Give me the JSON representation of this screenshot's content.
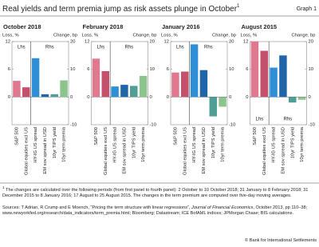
{
  "header": {
    "title": "Real yields and term premia jump as risk assets plunge in October",
    "title_note": "1",
    "graph_label": "Graph 1"
  },
  "chart_data": [
    {
      "type": "bar",
      "title": "October 2018",
      "y_label": "Loss, %",
      "y2_label": "Change, bp",
      "categories": [
        "S&P 500",
        "Global equities excl US",
        "HY-IG US spread",
        "EM sov spread in USD",
        "10yr TIPS yield",
        "10yr term premia"
      ],
      "colors": [
        "#e07890",
        "#c4506c",
        "#2e8fd6",
        "#1f65a8",
        "#4f9f96",
        "#8cc48e"
      ],
      "series": [
        {
          "name": "Lhs",
          "axis": "y",
          "values": [
            3.5,
            2.1,
            null,
            null,
            null,
            null
          ]
        },
        {
          "name": "Rhs",
          "axis": "y2",
          "values": [
            null,
            null,
            14,
            1,
            1,
            6
          ]
        }
      ],
      "series_label_position": "top",
      "ylim": [
        -6,
        12
      ],
      "yticks": [
        0,
        6,
        12
      ],
      "y2lim": [
        -10,
        20
      ],
      "y2ticks": [
        -10,
        0,
        10,
        20
      ]
    },
    {
      "type": "bar",
      "title": "February 2018",
      "y_label": "Loss, %",
      "y2_label": "Change, bp",
      "categories": [
        "S&P 500",
        "Global equities excl US",
        "HY-IG US spread",
        "EM sov spread in USD",
        "10yr TIPS yield",
        "10yr term premia"
      ],
      "colors": [
        "#e07890",
        "#c4506c",
        "#2e8fd6",
        "#1f65a8",
        "#4f9f96",
        "#8cc48e"
      ],
      "series": [
        {
          "name": "Lhs",
          "axis": "y",
          "values": [
            8.3,
            5.6,
            null,
            null,
            null,
            null
          ]
        },
        {
          "name": "Rhs",
          "axis": "y2",
          "values": [
            null,
            null,
            3.8,
            4.4,
            4,
            7.6
          ]
        }
      ],
      "series_label_position": "top",
      "ylim": [
        -6,
        12
      ],
      "yticks": [
        0,
        6,
        12
      ],
      "y2lim": [
        -10,
        20
      ],
      "y2ticks": [
        -10,
        0,
        10,
        20
      ]
    },
    {
      "type": "bar",
      "title": "January 2016",
      "y_label": "Loss, %",
      "y2_label": "Change, bp",
      "categories": [
        "S&P 500",
        "Global equities excl US",
        "HY-IG US spread",
        "EM sov spread in USD",
        "10yr TIPS yield",
        "10yr term premia"
      ],
      "colors": [
        "#e07890",
        "#c4506c",
        "#2e8fd6",
        "#1f65a8",
        "#4f9f96",
        "#8cc48e"
      ],
      "series": [
        {
          "name": "Lhs",
          "axis": "y",
          "values": [
            5.3,
            5.5,
            null,
            null,
            null,
            null
          ]
        },
        {
          "name": "Rhs",
          "axis": "y2",
          "values": [
            null,
            null,
            19,
            9.7,
            -7,
            -3.5
          ]
        }
      ],
      "series_label_position": "top",
      "ylim": [
        -6,
        12
      ],
      "yticks": [
        0,
        6,
        12
      ],
      "y2lim": [
        -10,
        20
      ],
      "y2ticks": [
        -10,
        0,
        10,
        20
      ]
    },
    {
      "type": "bar",
      "title": "August 2015",
      "y_label": "Loss, %",
      "y2_label": "Change, bp",
      "categories": [
        "S&P 500",
        "Global equities excl US",
        "HY-IG US spread",
        "EM sov spread in USD",
        "10yr TIPS yield",
        "10yr term premia"
      ],
      "colors": [
        "#e07890",
        "#c4506c",
        "#2e8fd6",
        "#1f65a8",
        "#4f9f96",
        "#8cc48e"
      ],
      "series": [
        {
          "name": "Lhs",
          "axis": "y",
          "values": [
            12,
            10,
            null,
            null,
            null,
            null
          ]
        },
        {
          "name": "Rhs",
          "axis": "y2",
          "values": [
            null,
            null,
            10.6,
            15,
            -2,
            -1
          ]
        }
      ],
      "series_label_position": "bottom",
      "ylim": [
        -6,
        12
      ],
      "yticks": [
        0,
        6,
        12
      ],
      "y2lim": [
        -10,
        20
      ],
      "y2ticks": [
        -10,
        0,
        10,
        20
      ]
    }
  ],
  "footnote": {
    "mark": "1",
    "text": "The changes are calculated over the following periods (from first panel to fourth panel): 2 October to 10 October 2018; 31 January to 8 February 2018; 31 December 2015 to 8 January 2016; 17 August to 25 August 2015. The changes in the term premium are computed over five-day moving averages."
  },
  "sources": {
    "text_1": "Sources: T Adrian, R Crump and E Moench, “Pricing the term structure with linear regressions”,",
    "journal": "Journal of Financial Economics",
    "text_2": ", October 2013, pp 110–38; www.newyorkfed.org/research/data_indicators/term_premia.html; Bloomberg; Datastream; ICE BofAML indices; JPMorgan Chase; BIS calculations."
  },
  "copyright": "© Bank for International Settlements"
}
